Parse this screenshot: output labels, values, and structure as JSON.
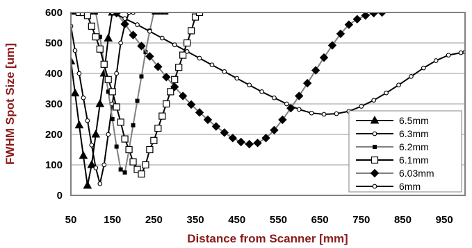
{
  "chart_data": {
    "type": "line",
    "title": "",
    "xlabel": "Distance from Scanner [mm]",
    "ylabel": "FWHM Spot Size [um]",
    "xlim": [
      50,
      1000
    ],
    "ylim": [
      0,
      600
    ],
    "xticks": [
      50,
      150,
      250,
      350,
      450,
      550,
      650,
      750,
      850,
      950
    ],
    "yticks": [
      0,
      100,
      200,
      300,
      400,
      500,
      600
    ],
    "grid": "horizontal",
    "legend_position": "bottom-right",
    "axis_color": "#8b1a1a",
    "series": [
      {
        "name": "6.5mm",
        "color": "#000000",
        "marker": "triangle",
        "fill": "#000000",
        "x": [
          50,
          60,
          70,
          80,
          90,
          100,
          110,
          120,
          130,
          140,
          150
        ],
        "y": [
          440,
          335,
          230,
          130,
          32,
          100,
          200,
          300,
          400,
          515,
          600
        ]
      },
      {
        "name": "6.3mm",
        "color": "#000000",
        "marker": "circle",
        "fill": "#ffffff",
        "x": [
          50,
          60,
          70,
          80,
          90,
          100,
          110,
          120,
          130,
          140,
          150,
          160,
          170,
          180,
          190,
          200
        ],
        "y": [
          555,
          475,
          400,
          320,
          245,
          165,
          90,
          38,
          100,
          200,
          300,
          400,
          500,
          560,
          600,
          600
        ],
        "note": "visible portion only"
      },
      {
        "name": "6.2mm",
        "color": "#808080",
        "marker": "square-small",
        "fill": "#000000",
        "x": [
          50,
          60,
          70,
          80,
          90,
          100,
          110,
          120,
          130,
          140,
          150,
          160,
          170,
          180,
          190,
          200,
          210,
          220,
          230,
          240,
          250,
          260,
          270,
          280
        ],
        "y": [
          600,
          600,
          600,
          600,
          600,
          600,
          600,
          520,
          430,
          340,
          250,
          160,
          85,
          75,
          150,
          230,
          310,
          390,
          470,
          540,
          600,
          600,
          600,
          600
        ]
      },
      {
        "name": "6.1mm",
        "color": "#000000",
        "marker": "square",
        "fill": "#ffffff",
        "x": [
          70,
          80,
          90,
          100,
          110,
          120,
          130,
          140,
          150,
          160,
          170,
          180,
          190,
          200,
          210,
          220,
          230,
          240,
          250,
          260,
          270,
          280,
          290,
          300,
          310,
          320,
          330,
          340,
          350,
          360
        ],
        "y": [
          600,
          600,
          590,
          555,
          520,
          480,
          430,
          380,
          340,
          290,
          240,
          185,
          150,
          110,
          85,
          70,
          100,
          150,
          180,
          220,
          260,
          300,
          340,
          380,
          420,
          460,
          500,
          540,
          585,
          600
        ]
      },
      {
        "name": "6.03mm",
        "color": "#808080",
        "marker": "diamond",
        "fill": "#000000",
        "x": [
          160,
          180,
          200,
          220,
          240,
          260,
          280,
          300,
          320,
          340,
          360,
          380,
          400,
          420,
          440,
          460,
          480,
          500,
          520,
          540,
          560,
          580,
          600,
          620,
          640,
          660,
          680,
          700,
          720,
          740,
          760,
          780,
          800
        ],
        "y": [
          598,
          562,
          526,
          490,
          456,
          422,
          388,
          356,
          326,
          298,
          272,
          248,
          226,
          206,
          188,
          175,
          168,
          172,
          188,
          214,
          248,
          286,
          326,
          368,
          410,
          452,
          492,
          530,
          560,
          578,
          590,
          598,
          600
        ]
      },
      {
        "name": "6mm",
        "color": "#000000",
        "marker": "circle",
        "fill": "#ffffff",
        "x": [
          150,
          180,
          210,
          240,
          270,
          300,
          330,
          360,
          390,
          420,
          450,
          480,
          510,
          540,
          570,
          600,
          630,
          660,
          690,
          720,
          750,
          780,
          810,
          840,
          870,
          900,
          930,
          960,
          990,
          1000
        ],
        "y": [
          600,
          580,
          560,
          538,
          516,
          494,
          472,
          450,
          428,
          406,
          384,
          362,
          340,
          320,
          300,
          282,
          270,
          266,
          268,
          276,
          292,
          312,
          336,
          362,
          390,
          418,
          442,
          460,
          468,
          470
        ]
      }
    ]
  }
}
